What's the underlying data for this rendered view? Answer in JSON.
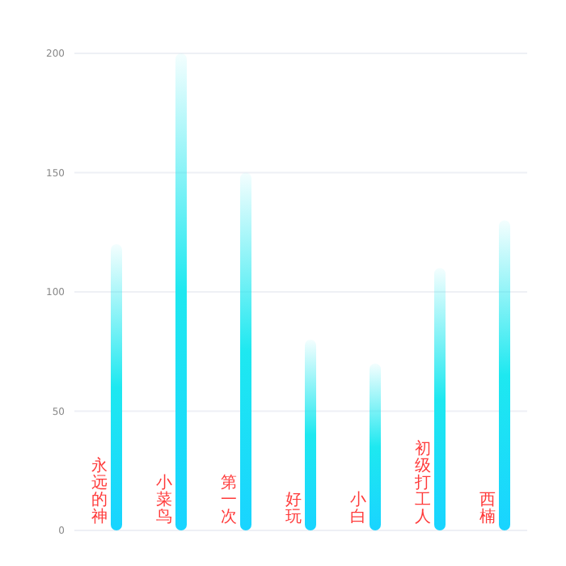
{
  "chart_data": {
    "type": "bar",
    "categories": [
      "永远的神",
      "小菜鸟",
      "第一次",
      "好玩",
      "小白",
      "初级打工人",
      "西楠"
    ],
    "values": [
      120,
      200,
      150,
      80,
      70,
      110,
      130
    ],
    "color": "#1ee8f0",
    "ylim": [
      0,
      200
    ],
    "yticks": [
      0,
      50,
      100,
      150,
      200
    ],
    "grid": "y"
  }
}
